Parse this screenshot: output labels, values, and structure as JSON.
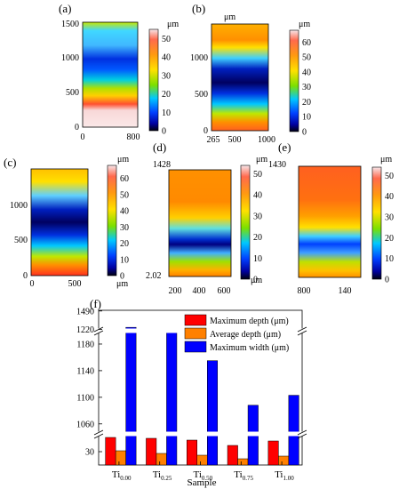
{
  "surface_maps": [
    {
      "label": "(a)",
      "unit": "μm",
      "x_ticks": [
        "0",
        "800"
      ],
      "y_ticks": [
        "0",
        "500",
        "1000",
        "1500"
      ],
      "colorbar_ticks": [
        "0",
        "10",
        "20",
        "30",
        "40",
        "50"
      ]
    },
    {
      "label": "(b)",
      "unit": "μm",
      "y_unit": "μm",
      "x_ticks": [
        "265",
        "500",
        "1000"
      ],
      "y_ticks": [
        "0",
        "500",
        "1000"
      ],
      "colorbar_ticks": [
        "0",
        "10",
        "20",
        "30",
        "40",
        "50",
        "60"
      ]
    },
    {
      "label": "(c)",
      "unit": "μm",
      "extra_unit": "μm",
      "x_ticks": [
        "0",
        "500"
      ],
      "y_ticks": [
        "0",
        "500",
        "1000"
      ],
      "colorbar_ticks": [
        "0",
        "10",
        "20",
        "30",
        "40",
        "50",
        "60"
      ]
    },
    {
      "label": "(d)",
      "unit": "μm",
      "extra_unit": "μm",
      "x_ticks": [
        "200",
        "400",
        "600"
      ],
      "y_ticks": [
        "2.02",
        "1428"
      ],
      "colorbar_ticks": [
        "0",
        "10",
        "20",
        "30",
        "40",
        "50"
      ]
    },
    {
      "label": "(e)",
      "unit": "μm",
      "x_ticks": [
        "800",
        "140"
      ],
      "y_ticks": [
        "1430"
      ],
      "colorbar_ticks": [
        "0",
        "10",
        "20",
        "30",
        "40",
        "50"
      ]
    }
  ],
  "chart_data": {
    "panel_label": "(f)",
    "type": "bar",
    "categories": [
      "Ti0.00",
      "Ti0.25",
      "Ti0.50",
      "Ti0.75",
      "Ti1.00"
    ],
    "category_labels": [
      {
        "main": "Ti",
        "sub": "0.00"
      },
      {
        "main": "Ti",
        "sub": "0.25"
      },
      {
        "main": "Ti",
        "sub": "0.50"
      },
      {
        "main": "Ti",
        "sub": "0.75"
      },
      {
        "main": "Ti",
        "sub": "1.00"
      }
    ],
    "series": [
      {
        "name": "Maximum depth (μm)",
        "color": "#ff0000",
        "values": [
          46,
          45,
          43,
          37,
          42
        ]
      },
      {
        "name": "Average depth (μm)",
        "color": "#ff8000",
        "values": [
          31,
          28,
          26,
          22,
          25
        ]
      },
      {
        "name": "Maximum width (μm)",
        "color": "#0000ff",
        "values": [
          1250,
          1225,
          1155,
          1088,
          1103
        ]
      }
    ],
    "xlabel": "Sample",
    "ylabel": "",
    "y_axis_breaks": [
      {
        "range": [
          15,
          50
        ],
        "ticks": [
          "30"
        ]
      },
      {
        "range": [
          1045,
          1200
        ],
        "ticks": [
          "1060",
          "1100",
          "1140",
          "1180"
        ]
      },
      {
        "range": [
          1200,
          1500
        ],
        "ticks": [
          "1220",
          "1490"
        ]
      }
    ],
    "legend_position": "top-right",
    "grid": false
  }
}
